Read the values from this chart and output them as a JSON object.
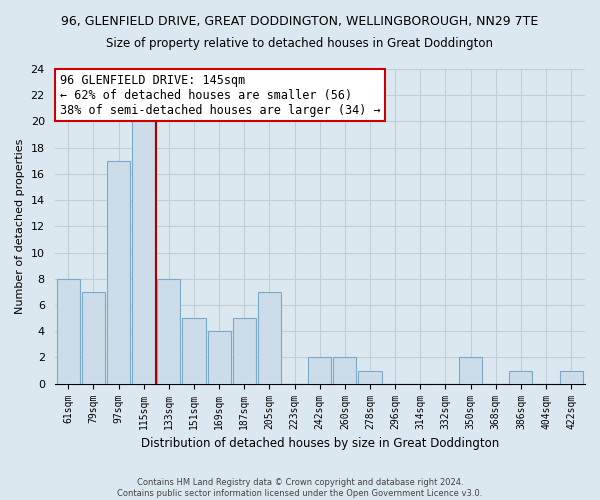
{
  "title": "96, GLENFIELD DRIVE, GREAT DODDINGTON, WELLINGBOROUGH, NN29 7TE",
  "subtitle": "Size of property relative to detached houses in Great Doddington",
  "xlabel": "Distribution of detached houses by size in Great Doddington",
  "ylabel": "Number of detached properties",
  "bar_color": "#ccdce8",
  "bar_edge_color": "#7aaac8",
  "categories": [
    "61sqm",
    "79sqm",
    "97sqm",
    "115sqm",
    "133sqm",
    "151sqm",
    "169sqm",
    "187sqm",
    "205sqm",
    "223sqm",
    "242sqm",
    "260sqm",
    "278sqm",
    "296sqm",
    "314sqm",
    "332sqm",
    "350sqm",
    "368sqm",
    "386sqm",
    "404sqm",
    "422sqm"
  ],
  "values": [
    8,
    7,
    17,
    20,
    8,
    5,
    4,
    5,
    7,
    0,
    2,
    2,
    1,
    0,
    0,
    0,
    2,
    0,
    1,
    0,
    1
  ],
  "ylim": [
    0,
    24
  ],
  "yticks": [
    0,
    2,
    4,
    6,
    8,
    10,
    12,
    14,
    16,
    18,
    20,
    22,
    24
  ],
  "ref_line_x": 3.5,
  "ref_line_color": "#aa0000",
  "annotation_line1": "96 GLENFIELD DRIVE: 145sqm",
  "annotation_line2": "← 62% of detached houses are smaller (56)",
  "annotation_line3": "38% of semi-detached houses are larger (34) →",
  "annotation_box_color": "#ffffff",
  "annotation_box_edge": "#cc0000",
  "footer_line1": "Contains HM Land Registry data © Crown copyright and database right 2024.",
  "footer_line2": "Contains public sector information licensed under the Open Government Licence v3.0.",
  "background_color": "#dce8f0",
  "plot_bg_color": "#dce8f0",
  "grid_color": "#c0cfd8"
}
